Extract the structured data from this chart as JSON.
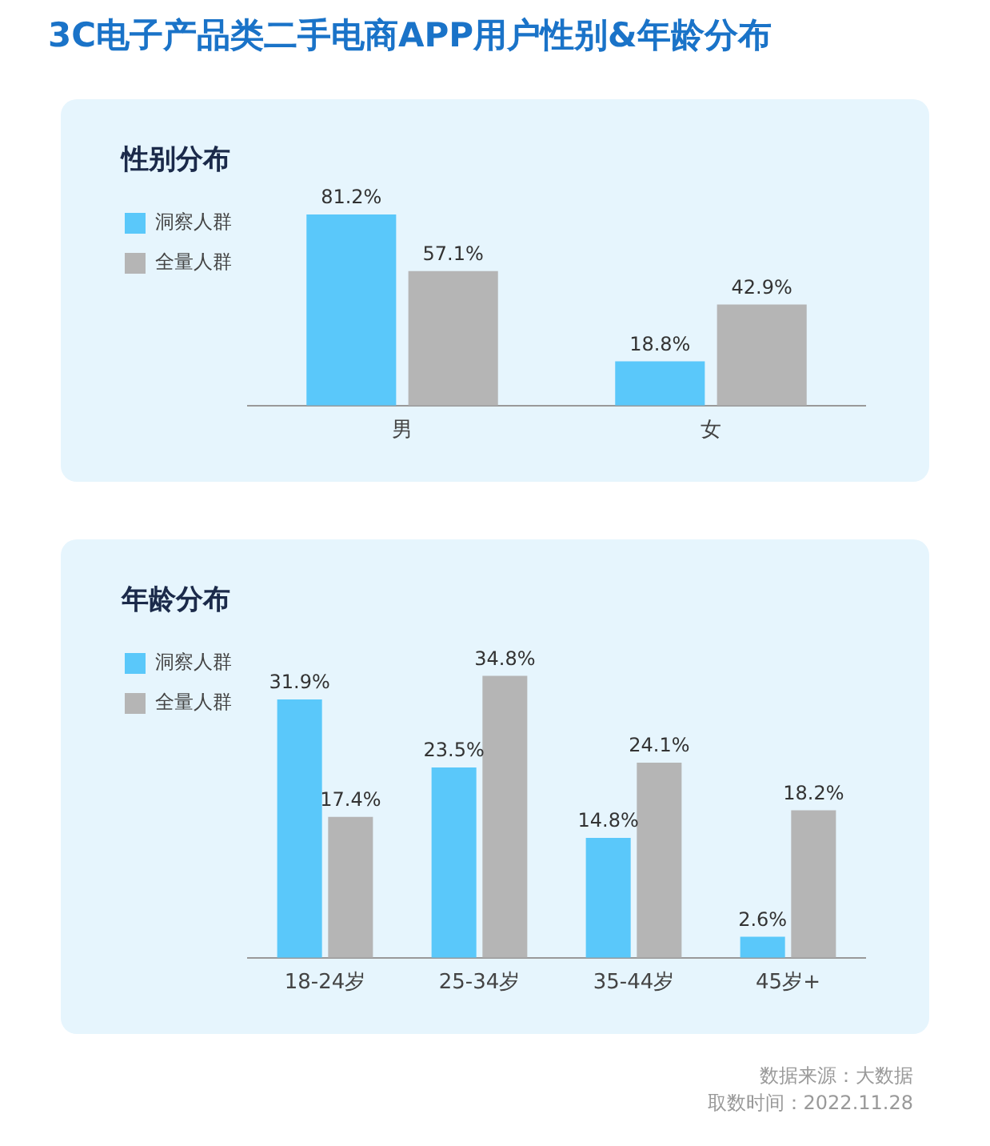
{
  "chart_data": [
    {
      "type": "bar",
      "title": "3C电子产品类二手电商APP用户性别&年龄分布",
      "subtitle": "性别分布",
      "categories": [
        "男",
        "女"
      ],
      "legend": "top left",
      "grid": false,
      "series": [
        {
          "name": "洞察人群",
          "color": "#5ac8fa",
          "values": [
            81.2,
            18.8
          ],
          "value_labels": [
            "81.2%",
            "18.8%"
          ]
        },
        {
          "name": "全量人群",
          "color": "#b5b5b5",
          "values": [
            57.1,
            42.9
          ],
          "value_labels": [
            "57.1%",
            "42.9%"
          ]
        }
      ]
    },
    {
      "type": "bar",
      "title": "年龄分布",
      "categories": [
        "18-24岁",
        "25-34岁",
        "35-44岁",
        "45岁+"
      ],
      "legend": "top left",
      "grid": false,
      "series": [
        {
          "name": "洞察人群",
          "color": "#5ac8fa",
          "values": [
            31.9,
            23.5,
            14.8,
            2.6
          ],
          "value_labels": [
            "31.9%",
            "23.5%",
            "14.8%",
            "2.6%"
          ]
        },
        {
          "name": "全量人群",
          "color": "#b5b5b5",
          "values": [
            17.4,
            34.8,
            24.1,
            18.2
          ],
          "value_labels": [
            "17.4%",
            "34.8%",
            "24.1%",
            "18.2%"
          ]
        }
      ],
      "annotations": [
        "数据来源：大数据",
        "取数时间：2022.11.28"
      ]
    }
  ]
}
